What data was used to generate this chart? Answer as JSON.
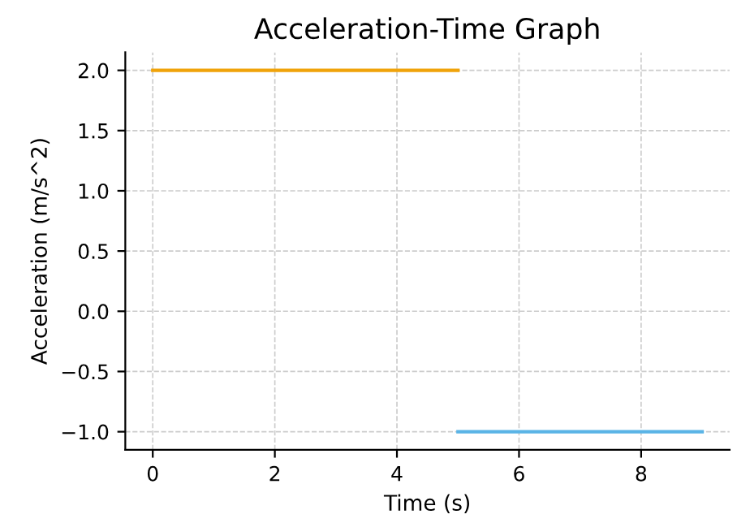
{
  "chart_data": {
    "type": "line",
    "title": "Acceleration-Time Graph",
    "xlabel": "Time (s)",
    "ylabel": "Acceleration (m/s^2)",
    "series": [
      {
        "color": "#f0a30a",
        "x": [
          0,
          5
        ],
        "values": [
          2.0,
          2.0
        ]
      },
      {
        "color": "#5ab4e6",
        "x": [
          5,
          9
        ],
        "values": [
          -1.0,
          -1.0
        ]
      }
    ],
    "xlim": [
      -0.45,
      9.45
    ],
    "xticks": [
      0,
      2,
      4,
      6,
      8
    ],
    "ylim": [
      -1.15,
      2.15
    ],
    "yticks": [
      {
        "value": -1.0,
        "label": "−1.0"
      },
      {
        "value": -0.5,
        "label": "−0.5"
      },
      {
        "value": 0.0,
        "label": "0.0"
      },
      {
        "value": 0.5,
        "label": "0.5"
      },
      {
        "value": 1.0,
        "label": "1.0"
      },
      {
        "value": 1.5,
        "label": "1.5"
      },
      {
        "value": 2.0,
        "label": "2.0"
      }
    ],
    "grid": true,
    "marker": "none",
    "line_style": "solid"
  }
}
